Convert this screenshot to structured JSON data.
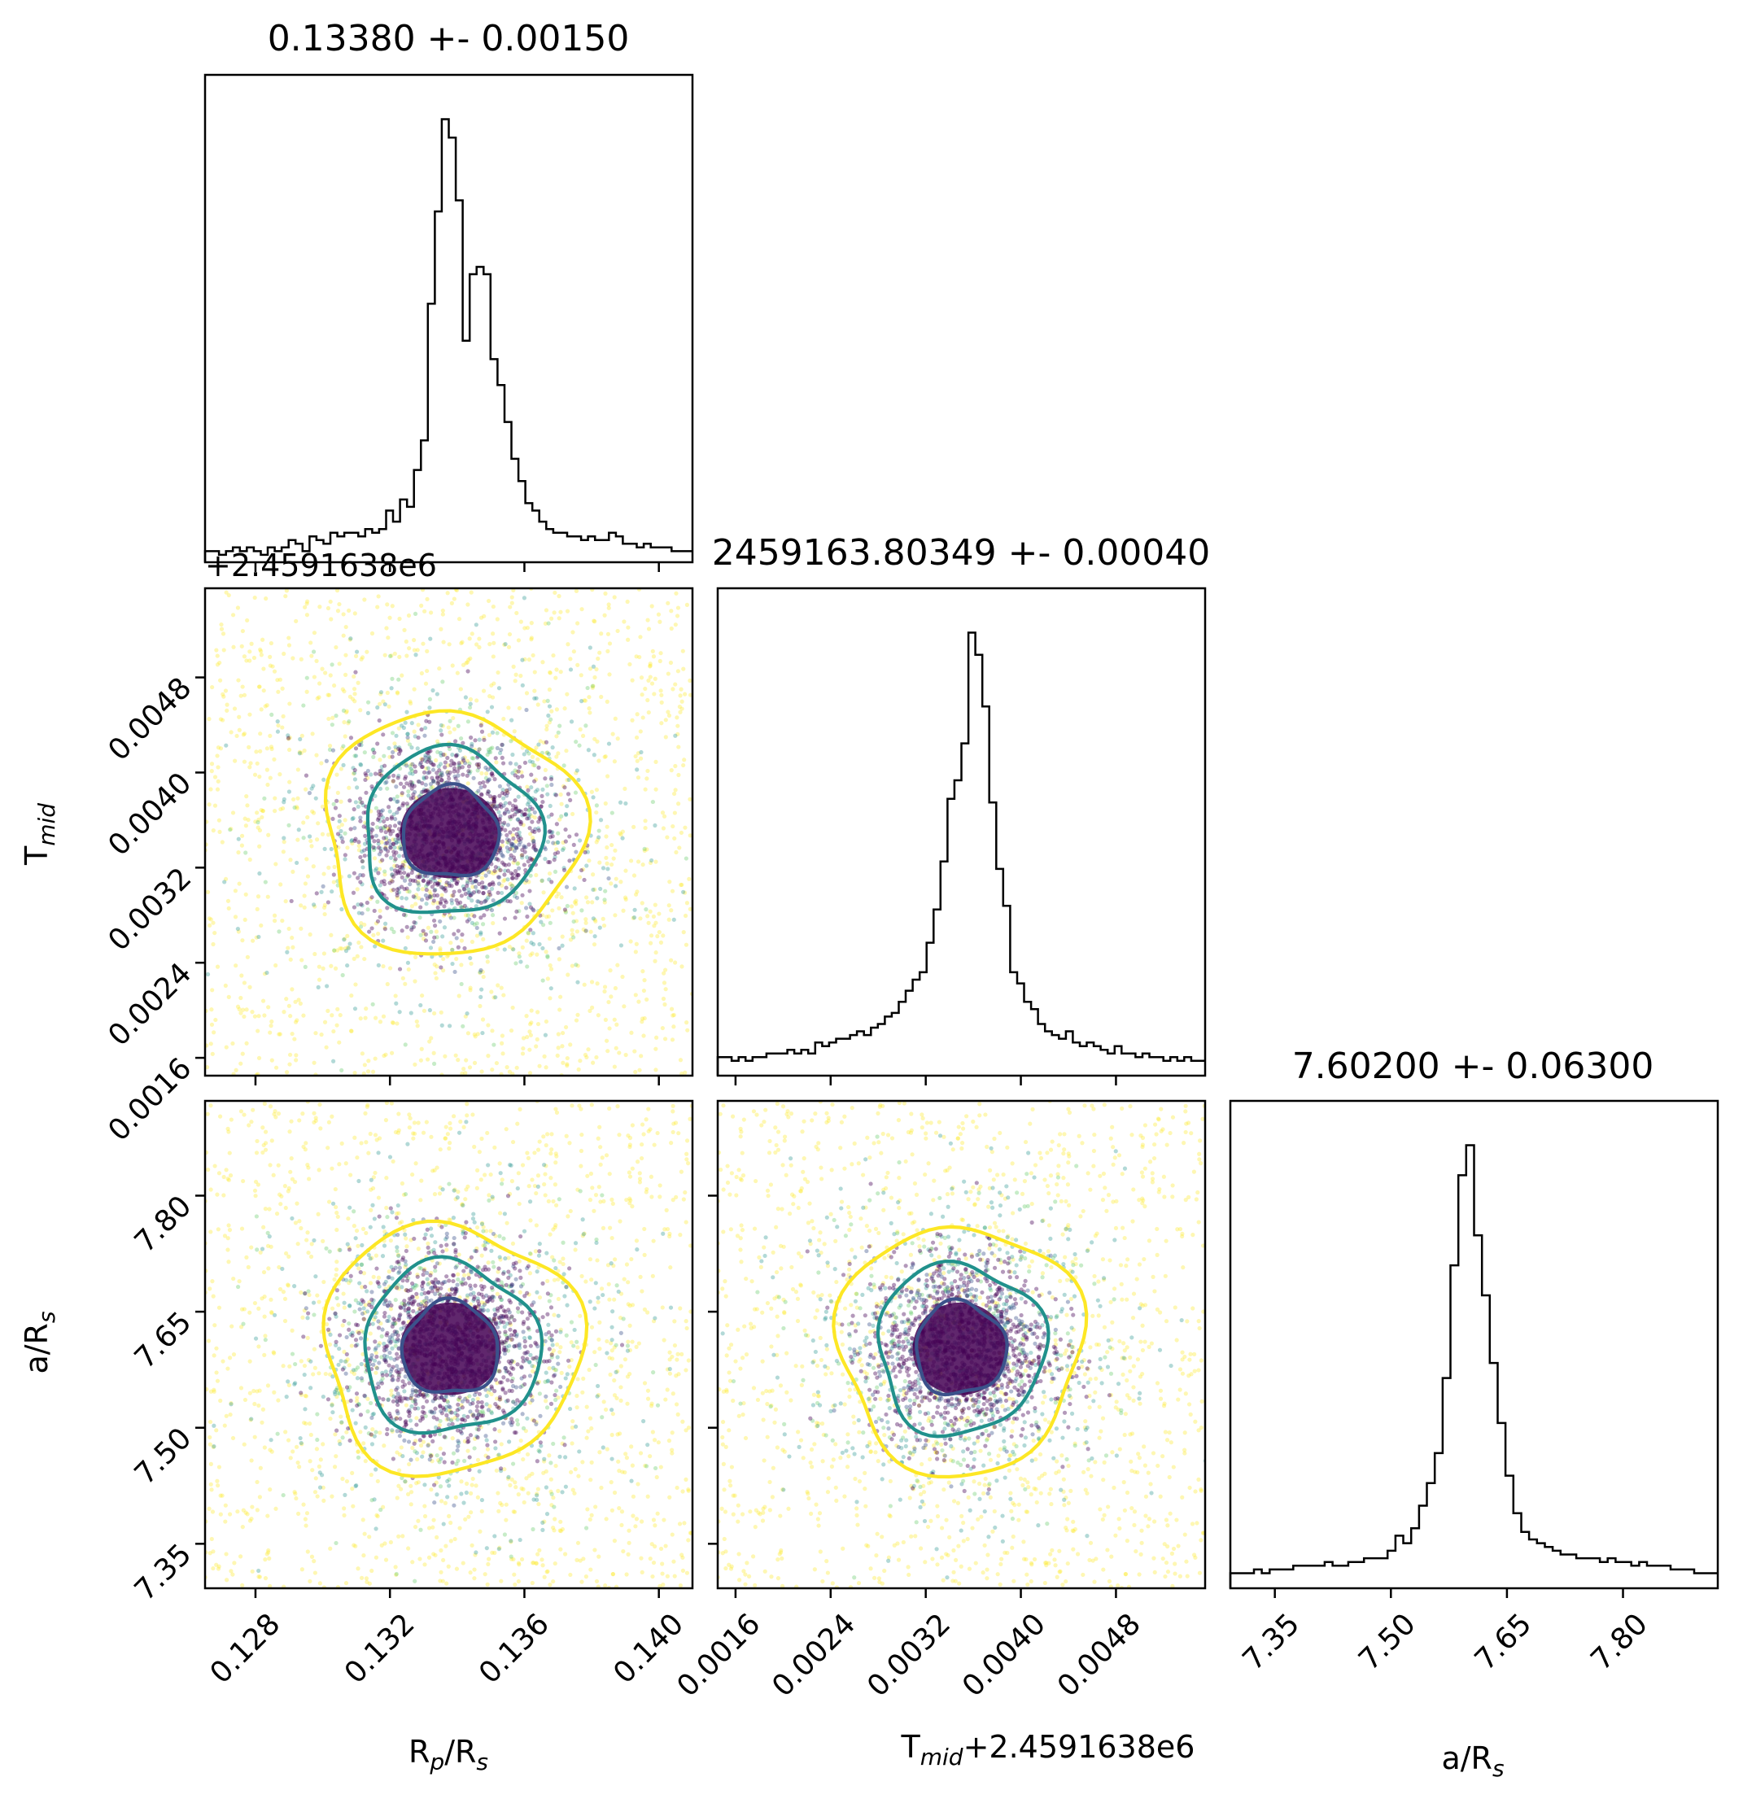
{
  "chart_data": {
    "type": "corner",
    "parameters": [
      {
        "key": "rp",
        "label": "R",
        "sub": "p",
        "label2": "/R",
        "sub2": "s"
      },
      {
        "key": "tmid",
        "label": "T",
        "sub": "mid",
        "label2": "",
        "sub2": ""
      },
      {
        "key": "ars",
        "label": "a/R",
        "sub": "s",
        "label2": "",
        "sub2": ""
      }
    ],
    "tmid_axis_label_suffix": "+2.4591638e6",
    "tmid_offset_text": "+2.4591638e6",
    "titles": [
      "0.13380 +- 0.00150",
      "2459163.80349 +- 0.00040",
      "7.60200 +- 0.06300"
    ],
    "ranges": {
      "rp": [
        0.1265,
        0.141
      ],
      "tmid": [
        0.00145,
        0.00555
      ],
      "ars": [
        7.2925,
        7.9225
      ]
    },
    "ticks": {
      "rp": [
        "0.128",
        "0.132",
        "0.136",
        "0.140"
      ],
      "tmid": [
        "0.0016",
        "0.0024",
        "0.0032",
        "0.0040",
        "0.0048"
      ],
      "ars": [
        "7.35",
        "7.50",
        "7.65",
        "7.80"
      ]
    },
    "posterior_center": {
      "rp": 0.1338,
      "tmid": 0.00349,
      "ars": 7.602
    },
    "posterior_width": {
      "rp": 0.0015,
      "tmid": 0.0004,
      "ars": 0.063
    },
    "histograms": {
      "rp": [
        3,
        3,
        2,
        3,
        4,
        3,
        4,
        3,
        2,
        4,
        3,
        4,
        6,
        5,
        3,
        7,
        6,
        5,
        8,
        7,
        8,
        8,
        7,
        9,
        8,
        9,
        14,
        11,
        17,
        15,
        25,
        33,
        70,
        95,
        120,
        115,
        98,
        60,
        78,
        80,
        78,
        55,
        48,
        38,
        28,
        22,
        16,
        14,
        11,
        9,
        8,
        8,
        7,
        7,
        6,
        7,
        6,
        6,
        8,
        7,
        5,
        5,
        4,
        5,
        4,
        4,
        4,
        3,
        3,
        3
      ],
      "tmid": [
        5,
        5,
        4,
        5,
        4,
        5,
        5,
        6,
        6,
        6,
        7,
        6,
        7,
        6,
        9,
        8,
        9,
        10,
        10,
        11,
        12,
        11,
        13,
        14,
        16,
        17,
        20,
        23,
        26,
        28,
        36,
        45,
        58,
        75,
        80,
        90,
        120,
        114,
        100,
        74,
        56,
        46,
        28,
        25,
        20,
        18,
        14,
        12,
        11,
        10,
        12,
        9,
        8,
        9,
        8,
        7,
        6,
        8,
        6,
        6,
        5,
        6,
        5,
        5,
        4,
        5,
        4,
        5,
        4,
        4
      ],
      "ars": [
        4,
        4,
        4,
        5,
        4,
        5,
        5,
        5,
        6,
        6,
        6,
        6,
        7,
        6,
        6,
        7,
        7,
        8,
        8,
        8,
        10,
        14,
        12,
        16,
        22,
        28,
        36,
        56,
        86,
        110,
        118,
        94,
        78,
        60,
        44,
        30,
        20,
        15,
        13,
        12,
        11,
        10,
        9,
        9,
        8,
        8,
        8,
        7,
        8,
        7,
        7,
        6,
        7,
        6,
        6,
        6,
        5,
        5,
        5,
        4,
        4,
        4
      ]
    },
    "contour_levels": [
      "0.5 sigma",
      "1 sigma",
      "2 sigma"
    ],
    "colors": {
      "inner_contour": "#3b528b",
      "middle_contour": "#21918c",
      "outer_contour": "#fde725",
      "core": "#440154",
      "histogram": "#000000",
      "axes": "#000000"
    }
  }
}
